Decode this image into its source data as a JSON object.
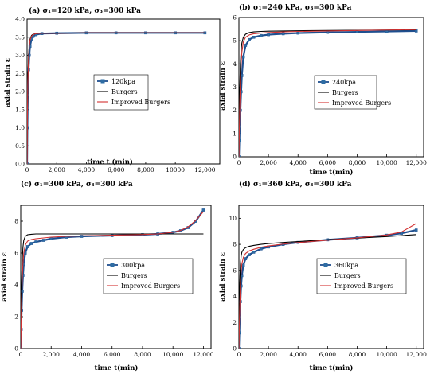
{
  "figure": {
    "legend_labels": [
      "Burgers",
      "Improved Burgers"
    ]
  },
  "colors": {
    "data": "#2e6da4",
    "data_line": "#1f4f8f",
    "burgers": "#000000",
    "improved": "#d33030"
  },
  "chart_data": [
    {
      "type": "line",
      "title": "(a) σ₁=120 kPa, σ₃=300 kPa",
      "xlabel": "time t (min)",
      "ylabel": "axial strain ε",
      "xlim": [
        0,
        13000
      ],
      "ylim": [
        0,
        4.0
      ],
      "xticks": [
        0,
        2000,
        4000,
        6000,
        8000,
        10000,
        12000
      ],
      "xtick_labels": [
        "0",
        "2,000",
        "4,000",
        "6,000",
        "8,000",
        "10000",
        "12,000"
      ],
      "yticks": [
        0,
        0.5,
        1.0,
        1.5,
        2.0,
        2.5,
        3.0,
        3.5,
        4.0
      ],
      "ytick_labels": [
        "0.0",
        "0.5",
        "1.0",
        "1.5",
        "2.0",
        "2.5",
        "3.0",
        "3.5",
        "4.0"
      ],
      "legend_position": "center",
      "series": [
        {
          "name": "120kpa",
          "role": "data",
          "x": [
            0,
            20,
            50,
            100,
            150,
            200,
            300,
            400,
            600,
            1000,
            2000,
            4000,
            6000,
            8000,
            10000,
            12000
          ],
          "y": [
            0,
            1.0,
            1.9,
            2.6,
            3.0,
            3.25,
            3.45,
            3.52,
            3.57,
            3.6,
            3.61,
            3.62,
            3.62,
            3.62,
            3.62,
            3.62
          ]
        },
        {
          "name": "Burgers",
          "role": "burgers",
          "x": [
            0,
            20,
            50,
            100,
            150,
            200,
            300,
            400,
            600,
            1000,
            2000,
            4000,
            6000,
            8000,
            10000,
            12000
          ],
          "y": [
            0,
            1.3,
            2.3,
            3.0,
            3.3,
            3.45,
            3.55,
            3.58,
            3.6,
            3.61,
            3.61,
            3.62,
            3.62,
            3.62,
            3.62,
            3.62
          ]
        },
        {
          "name": "Improved Burgers",
          "role": "improved",
          "x": [
            0,
            20,
            50,
            100,
            150,
            200,
            300,
            400,
            600,
            1000,
            2000,
            4000,
            6000,
            8000,
            10000,
            12000
          ],
          "y": [
            0,
            1.2,
            2.2,
            2.9,
            3.25,
            3.42,
            3.53,
            3.57,
            3.6,
            3.61,
            3.61,
            3.62,
            3.62,
            3.62,
            3.62,
            3.62
          ]
        }
      ]
    },
    {
      "type": "line",
      "title": "(b) σ₁=240 kPa, σ₃=300 kPa",
      "xlabel": "time t(min)",
      "ylabel": "axial strain ε",
      "xlim": [
        0,
        12500
      ],
      "ylim": [
        0,
        6
      ],
      "xticks": [
        0,
        2000,
        4000,
        6000,
        8000,
        10000,
        12000
      ],
      "xtick_labels": [
        "0",
        "2,000",
        "4,000",
        "6,000",
        "8,000",
        "10,000",
        "12,000"
      ],
      "yticks": [
        0,
        1,
        2,
        3,
        4,
        5,
        6
      ],
      "ytick_labels": [
        "0",
        "1",
        "2",
        "3",
        "4",
        "5",
        "6"
      ],
      "legend_position": "center",
      "series": [
        {
          "name": "240kpa",
          "role": "data",
          "x": [
            0,
            30,
            60,
            100,
            150,
            200,
            300,
            450,
            700,
            1000,
            1500,
            2000,
            3000,
            4000,
            6000,
            8000,
            10000,
            12000
          ],
          "y": [
            0,
            0.7,
            1.3,
            2.0,
            2.8,
            3.5,
            4.3,
            4.8,
            5.05,
            5.15,
            5.22,
            5.26,
            5.3,
            5.33,
            5.36,
            5.38,
            5.4,
            5.42
          ]
        },
        {
          "name": "Burgers",
          "role": "burgers",
          "x": [
            0,
            30,
            60,
            100,
            150,
            200,
            300,
            450,
            700,
            1000,
            1500,
            2000,
            3000,
            4000,
            6000,
            8000,
            10000,
            12000
          ],
          "y": [
            0,
            1.8,
            3.0,
            4.0,
            4.6,
            4.9,
            5.15,
            5.28,
            5.35,
            5.38,
            5.4,
            5.41,
            5.42,
            5.43,
            5.44,
            5.45,
            5.46,
            5.47
          ]
        },
        {
          "name": "Improved Burgers",
          "role": "improved",
          "x": [
            0,
            30,
            60,
            100,
            150,
            200,
            300,
            450,
            700,
            1000,
            1500,
            2000,
            3000,
            4000,
            6000,
            8000,
            10000,
            12000
          ],
          "y": [
            0,
            1.2,
            2.2,
            3.2,
            4.0,
            4.5,
            4.95,
            5.15,
            5.25,
            5.3,
            5.33,
            5.35,
            5.38,
            5.4,
            5.42,
            5.44,
            5.46,
            5.48
          ]
        }
      ]
    },
    {
      "type": "line",
      "title": "(c) σ₁=300 kPa, σ₃=300 kPa",
      "xlabel": "time t(min)",
      "ylabel": "axial strain ε",
      "xlim": [
        0,
        12500
      ],
      "ylim": [
        0,
        9
      ],
      "xticks": [
        0,
        2000,
        4000,
        6000,
        8000,
        10000,
        12000
      ],
      "xtick_labels": [
        "0",
        "2,000",
        "4,000",
        "6,000",
        "8,000",
        "10,000",
        "12,000"
      ],
      "yticks": [
        0,
        2,
        4,
        6,
        8
      ],
      "ytick_labels": [
        "0",
        "2",
        "4",
        "6",
        "8"
      ],
      "legend_position": "center",
      "series": [
        {
          "name": "300kpa",
          "role": "data",
          "x": [
            0,
            30,
            60,
            100,
            150,
            200,
            300,
            450,
            700,
            1000,
            1500,
            2000,
            3000,
            4000,
            6000,
            8000,
            9000,
            10000,
            10500,
            11000,
            11500,
            12000
          ],
          "y": [
            0,
            1.2,
            2.4,
            3.6,
            4.6,
            5.3,
            6.0,
            6.4,
            6.6,
            6.7,
            6.8,
            6.9,
            7.0,
            7.05,
            7.1,
            7.15,
            7.2,
            7.3,
            7.4,
            7.6,
            8.0,
            8.7
          ]
        },
        {
          "name": "Burgers",
          "role": "burgers",
          "x": [
            0,
            30,
            60,
            100,
            150,
            200,
            300,
            450,
            700,
            1000,
            1500,
            2000,
            3000,
            4000,
            6000,
            8000,
            9000,
            10000,
            10500,
            11000,
            11500,
            12000
          ],
          "y": [
            0,
            2.5,
            4.2,
            5.6,
            6.4,
            6.8,
            7.05,
            7.15,
            7.18,
            7.2,
            7.2,
            7.2,
            7.2,
            7.2,
            7.2,
            7.2,
            7.2,
            7.2,
            7.2,
            7.2,
            7.2,
            7.2
          ]
        },
        {
          "name": "Improved Burgers",
          "role": "improved",
          "x": [
            0,
            30,
            60,
            100,
            150,
            200,
            300,
            450,
            700,
            1000,
            1500,
            2000,
            3000,
            4000,
            6000,
            8000,
            9000,
            10000,
            10500,
            11000,
            11500,
            12000
          ],
          "y": [
            0,
            1.6,
            3.0,
            4.4,
            5.4,
            6.0,
            6.5,
            6.75,
            6.85,
            6.9,
            6.95,
            7.0,
            7.05,
            7.08,
            7.12,
            7.16,
            7.2,
            7.3,
            7.42,
            7.65,
            8.05,
            8.6
          ]
        }
      ]
    },
    {
      "type": "line",
      "title": "(d) σ₁=360 kPa, σ₃=300 kPa",
      "xlabel": "time t(min)",
      "ylabel": "axial strain ε",
      "xlim": [
        0,
        12500
      ],
      "ylim": [
        0,
        11
      ],
      "xticks": [
        0,
        2000,
        4000,
        6000,
        8000,
        10000,
        12000
      ],
      "xtick_labels": [
        "0",
        "2,000",
        "4,000",
        "6,000",
        "8,000",
        "10,000",
        "12,000"
      ],
      "yticks": [
        0,
        2,
        4,
        6,
        8,
        10
      ],
      "ytick_labels": [
        "0",
        "2",
        "4",
        "6",
        "8",
        "10"
      ],
      "legend_position": "center",
      "series": [
        {
          "name": "360kpa",
          "role": "data",
          "x": [
            0,
            30,
            60,
            100,
            150,
            200,
            300,
            450,
            700,
            1000,
            1500,
            2000,
            3000,
            4000,
            6000,
            8000,
            10000,
            11000,
            12000
          ],
          "y": [
            0,
            1.2,
            2.4,
            3.6,
            4.8,
            5.6,
            6.4,
            6.9,
            7.2,
            7.4,
            7.65,
            7.8,
            8.0,
            8.15,
            8.35,
            8.5,
            8.7,
            8.85,
            9.1
          ]
        },
        {
          "name": "Burgers",
          "role": "burgers",
          "x": [
            0,
            30,
            60,
            100,
            150,
            200,
            300,
            450,
            700,
            1000,
            1500,
            2000,
            3000,
            4000,
            6000,
            8000,
            10000,
            11000,
            12000
          ],
          "y": [
            0,
            3.0,
            5.0,
            6.4,
            7.1,
            7.4,
            7.6,
            7.75,
            7.85,
            7.92,
            8.0,
            8.06,
            8.15,
            8.22,
            8.35,
            8.48,
            8.6,
            8.67,
            8.75
          ]
        },
        {
          "name": "Improved Burgers",
          "role": "improved",
          "x": [
            0,
            30,
            60,
            100,
            150,
            200,
            300,
            450,
            700,
            1000,
            1500,
            2000,
            3000,
            4000,
            6000,
            8000,
            10000,
            11000,
            12000
          ],
          "y": [
            0,
            1.8,
            3.2,
            4.8,
            5.9,
            6.5,
            7.0,
            7.3,
            7.5,
            7.62,
            7.78,
            7.88,
            8.02,
            8.14,
            8.32,
            8.5,
            8.72,
            8.95,
            9.6
          ]
        }
      ]
    }
  ]
}
